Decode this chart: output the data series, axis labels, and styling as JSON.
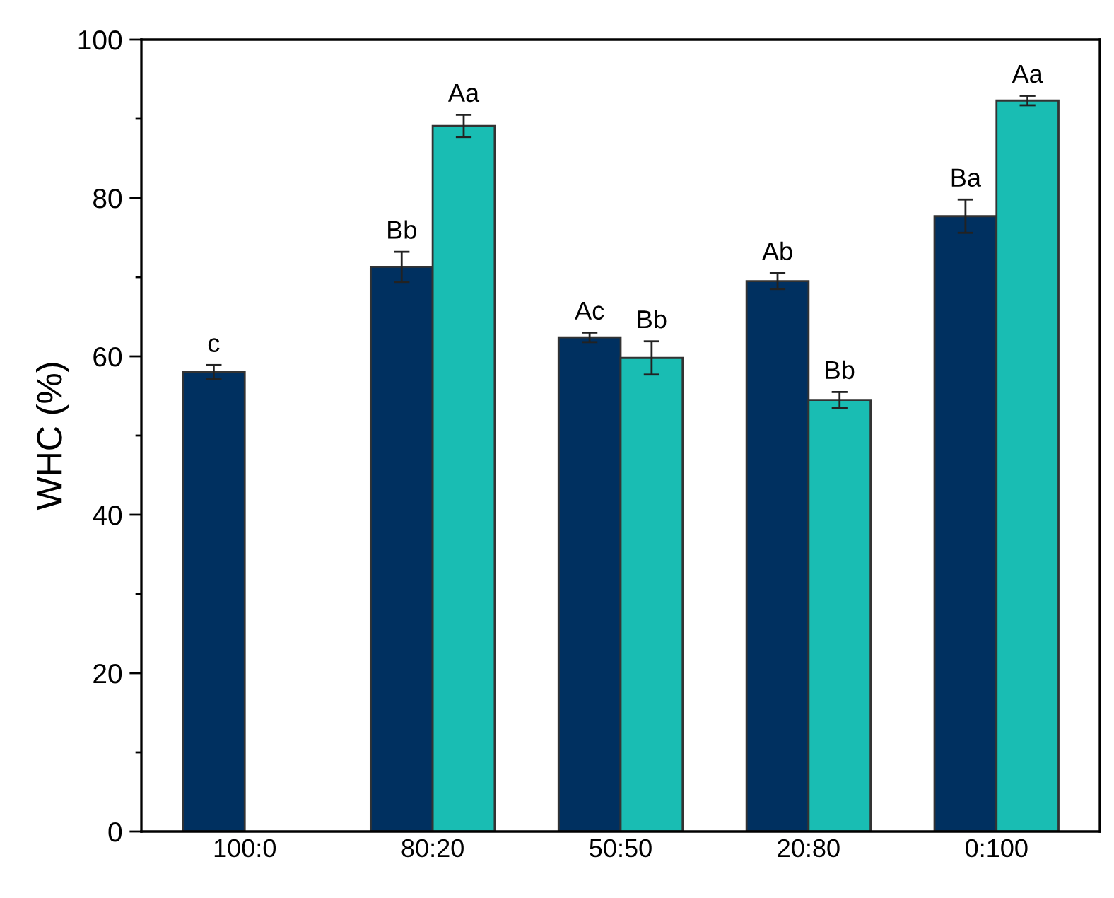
{
  "chart_data": {
    "type": "bar",
    "ylabel": "WHC (%)",
    "categories": [
      "100:0",
      "80:20",
      "50:50",
      "20:80",
      "0:100"
    ],
    "series": [
      {
        "color": "#003060",
        "values": [
          58.0,
          71.3,
          62.4,
          69.5,
          77.7
        ],
        "errors": [
          0.9,
          1.9,
          0.6,
          1.0,
          2.1
        ],
        "value_labels": [
          "c",
          "Bb",
          "Ac",
          "Ab",
          "Ba"
        ]
      },
      {
        "color": "#19bdb3",
        "values": [
          null,
          89.1,
          59.8,
          54.5,
          92.3
        ],
        "errors": [
          null,
          1.4,
          2.1,
          1.0,
          0.6
        ],
        "value_labels": [
          null,
          "Aa",
          "Bb",
          "Bb",
          "Aa"
        ]
      }
    ],
    "ylim": [
      0,
      100
    ],
    "yticks": [
      0,
      20,
      40,
      60,
      80,
      100
    ],
    "grid": false,
    "legend": false
  }
}
